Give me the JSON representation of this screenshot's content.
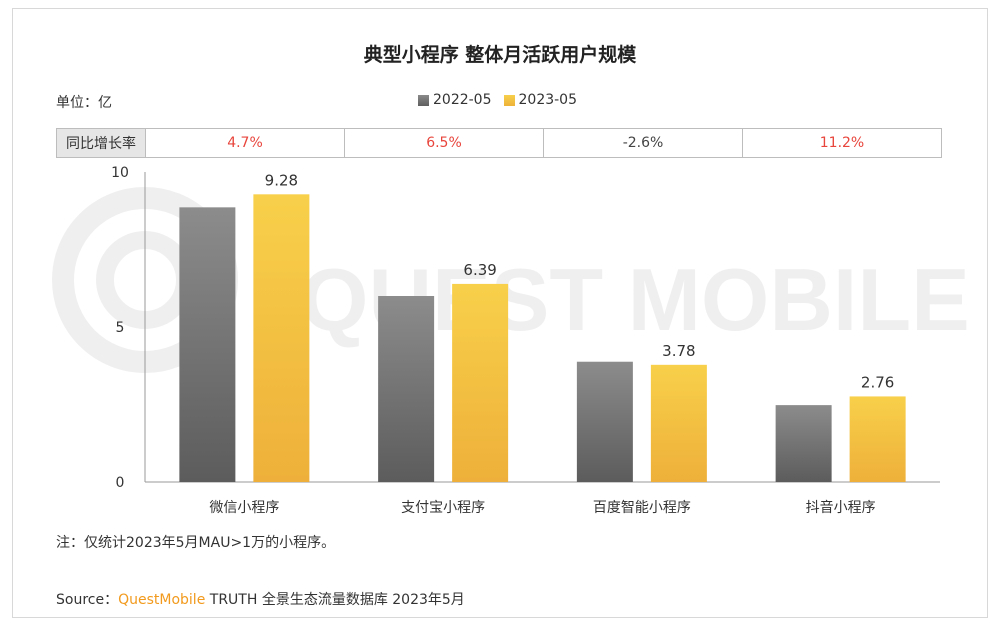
{
  "title": "典型小程序 整体月活跃用户规模",
  "unit_label": "单位：亿",
  "growth": {
    "label": "同比增长率",
    "values": [
      "4.7%",
      "6.5%",
      "-2.6%",
      "11.2%"
    ]
  },
  "note": "注：仅统计2023年5月MAU>1万的小程序。",
  "source": {
    "prefix": "Source：",
    "brand": "QuestMobile",
    "suffix": " TRUTH 全景生态流量数据库 2023年5月"
  },
  "watermark": "QUEST MOBILE",
  "chart_data": {
    "type": "bar",
    "categories": [
      "微信小程序",
      "支付宝小程序",
      "百度智能小程序",
      "抖音小程序"
    ],
    "series": [
      {
        "name": "2022-05",
        "values": [
          8.86,
          6.0,
          3.88,
          2.48
        ],
        "color": "#6e6e6e"
      },
      {
        "name": "2023-05",
        "values": [
          9.28,
          6.39,
          3.78,
          2.76
        ],
        "color": "#f2bf3f"
      }
    ],
    "data_labels": [
      "9.28",
      "6.39",
      "3.78",
      "2.76"
    ],
    "ylim": [
      0,
      10
    ],
    "yticks": [
      0,
      5,
      10
    ],
    "legend": "top-center",
    "grid": false
  }
}
